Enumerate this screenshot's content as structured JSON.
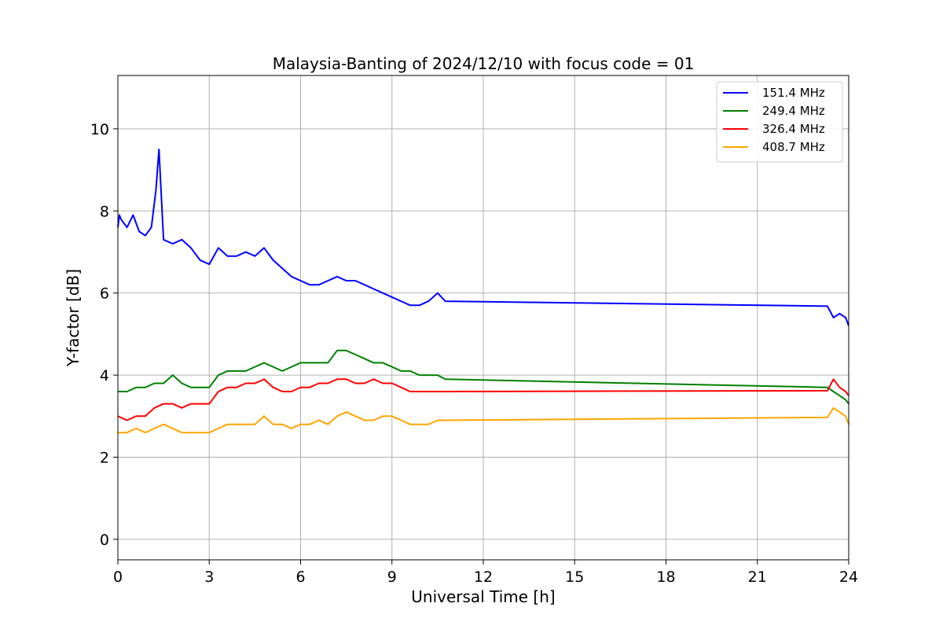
{
  "chart_data": {
    "type": "line",
    "title": "Malaysia-Banting of 2024/12/10 with focus code = 01",
    "xlabel": "Universal Time [h]",
    "ylabel": "Y-factor [dB]",
    "xlim": [
      0,
      24
    ],
    "ylim": [
      -0.5,
      11.3
    ],
    "xticks": [
      0,
      3,
      6,
      9,
      12,
      15,
      18,
      21,
      24
    ],
    "yticks": [
      0,
      2,
      4,
      6,
      8,
      10
    ],
    "grid": true,
    "legend_position": "top-right",
    "series": [
      {
        "name": "151.4 MHz",
        "color": "#0000ff",
        "x": [
          0,
          0.05,
          0.1,
          0.3,
          0.5,
          0.7,
          0.9,
          1.1,
          1.25,
          1.35,
          1.5,
          1.8,
          2.1,
          2.4,
          2.7,
          3.0,
          3.3,
          3.6,
          3.9,
          4.2,
          4.5,
          4.8,
          5.1,
          5.4,
          5.7,
          6.0,
          6.3,
          6.6,
          6.9,
          7.2,
          7.5,
          7.8,
          8.1,
          8.4,
          8.7,
          9.0,
          9.3,
          9.6,
          9.9,
          10.2,
          10.5,
          10.75,
          23.3,
          23.5,
          23.7,
          23.9,
          24
        ],
        "y": [
          7.6,
          7.9,
          7.8,
          7.6,
          7.9,
          7.5,
          7.4,
          7.6,
          8.5,
          9.5,
          7.3,
          7.2,
          7.3,
          7.1,
          6.8,
          6.7,
          7.1,
          6.9,
          6.9,
          7.0,
          6.9,
          7.1,
          6.8,
          6.6,
          6.4,
          6.3,
          6.2,
          6.2,
          6.3,
          6.4,
          6.3,
          6.3,
          6.2,
          6.1,
          6.0,
          5.9,
          5.8,
          5.7,
          5.7,
          5.8,
          6.0,
          5.8,
          5.68,
          5.4,
          5.5,
          5.4,
          5.2
        ]
      },
      {
        "name": "249.4 MHz",
        "color": "#008000",
        "x": [
          0,
          0.3,
          0.6,
          0.9,
          1.2,
          1.5,
          1.8,
          2.1,
          2.4,
          2.7,
          3.0,
          3.3,
          3.6,
          3.9,
          4.2,
          4.5,
          4.8,
          5.1,
          5.4,
          5.7,
          6.0,
          6.3,
          6.6,
          6.9,
          7.2,
          7.5,
          7.8,
          8.1,
          8.4,
          8.7,
          9.0,
          9.3,
          9.6,
          9.9,
          10.2,
          10.5,
          10.75,
          23.3,
          23.5,
          23.7,
          23.9,
          24
        ],
        "y": [
          3.6,
          3.6,
          3.7,
          3.7,
          3.8,
          3.8,
          4.0,
          3.8,
          3.7,
          3.7,
          3.7,
          4.0,
          4.1,
          4.1,
          4.1,
          4.2,
          4.3,
          4.2,
          4.1,
          4.2,
          4.3,
          4.3,
          4.3,
          4.3,
          4.6,
          4.6,
          4.5,
          4.4,
          4.3,
          4.3,
          4.2,
          4.1,
          4.1,
          4.0,
          4.0,
          4.0,
          3.9,
          3.7,
          3.6,
          3.5,
          3.4,
          3.3
        ]
      },
      {
        "name": "326.4 MHz",
        "color": "#ff0000",
        "x": [
          0,
          0.3,
          0.6,
          0.9,
          1.2,
          1.5,
          1.8,
          2.1,
          2.4,
          2.7,
          3.0,
          3.3,
          3.6,
          3.9,
          4.2,
          4.5,
          4.8,
          5.1,
          5.4,
          5.7,
          6.0,
          6.3,
          6.6,
          6.9,
          7.2,
          7.5,
          7.8,
          8.1,
          8.4,
          8.7,
          9.0,
          9.3,
          9.6,
          9.9,
          10.2,
          10.5,
          10.75,
          23.3,
          23.5,
          23.7,
          23.9,
          24
        ],
        "y": [
          3.0,
          2.9,
          3.0,
          3.0,
          3.2,
          3.3,
          3.3,
          3.2,
          3.3,
          3.3,
          3.3,
          3.6,
          3.7,
          3.7,
          3.8,
          3.8,
          3.9,
          3.7,
          3.6,
          3.6,
          3.7,
          3.7,
          3.8,
          3.8,
          3.9,
          3.9,
          3.8,
          3.8,
          3.9,
          3.8,
          3.8,
          3.7,
          3.6,
          3.6,
          3.6,
          3.6,
          3.6,
          3.62,
          3.9,
          3.7,
          3.6,
          3.5
        ]
      },
      {
        "name": "408.7 MHz",
        "color": "#ffa500",
        "x": [
          0,
          0.3,
          0.6,
          0.9,
          1.2,
          1.5,
          1.8,
          2.1,
          2.4,
          2.7,
          3.0,
          3.3,
          3.6,
          3.9,
          4.2,
          4.5,
          4.8,
          5.1,
          5.4,
          5.7,
          6.0,
          6.3,
          6.6,
          6.9,
          7.2,
          7.5,
          7.8,
          8.1,
          8.4,
          8.7,
          9.0,
          9.3,
          9.6,
          9.9,
          10.2,
          10.5,
          10.75,
          23.3,
          23.5,
          23.7,
          23.9,
          24
        ],
        "y": [
          2.6,
          2.6,
          2.7,
          2.6,
          2.7,
          2.8,
          2.7,
          2.6,
          2.6,
          2.6,
          2.6,
          2.7,
          2.8,
          2.8,
          2.8,
          2.8,
          3.0,
          2.8,
          2.8,
          2.7,
          2.8,
          2.8,
          2.9,
          2.8,
          3.0,
          3.1,
          3.0,
          2.9,
          2.9,
          3.0,
          3.0,
          2.9,
          2.8,
          2.8,
          2.8,
          2.9,
          2.9,
          2.97,
          3.2,
          3.1,
          3.0,
          2.8
        ]
      }
    ]
  }
}
